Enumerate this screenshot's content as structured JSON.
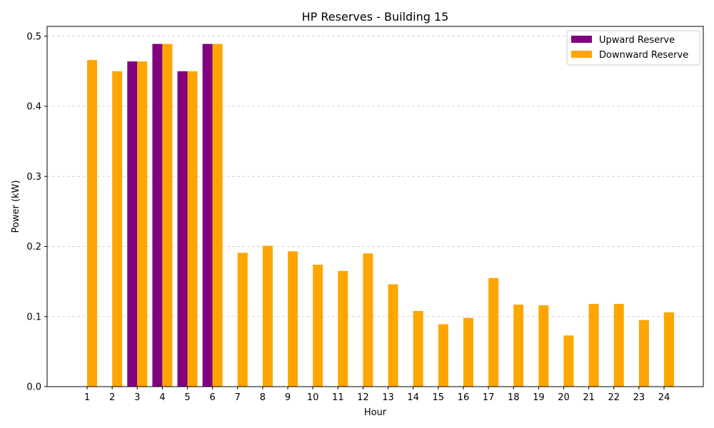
{
  "chart_data": {
    "type": "bar",
    "title": "HP Reserves - Building 15",
    "xlabel": "Hour",
    "ylabel": "Power (kW)",
    "categories": [
      "1",
      "2",
      "3",
      "4",
      "5",
      "6",
      "7",
      "8",
      "9",
      "10",
      "11",
      "12",
      "13",
      "14",
      "15",
      "16",
      "17",
      "18",
      "19",
      "20",
      "21",
      "22",
      "23",
      "24"
    ],
    "series": [
      {
        "name": "Upward Reserve",
        "color": "#800080",
        "values": [
          0,
          0,
          0.464,
          0.489,
          0.45,
          0.489,
          0,
          0,
          0,
          0,
          0,
          0,
          0,
          0,
          0,
          0,
          0,
          0,
          0,
          0,
          0,
          0,
          0,
          0
        ]
      },
      {
        "name": "Downward Reserve",
        "color": "#FFA500",
        "values": [
          0.466,
          0.45,
          0.464,
          0.489,
          0.45,
          0.489,
          0.191,
          0.201,
          0.193,
          0.174,
          0.165,
          0.19,
          0.146,
          0.108,
          0.089,
          0.098,
          0.155,
          0.117,
          0.116,
          0.073,
          0.118,
          0.118,
          0.095,
          0.106
        ]
      }
    ],
    "ylim": [
      0,
      0.514
    ],
    "yticks": [
      "0.0",
      "0.1",
      "0.2",
      "0.3",
      "0.4",
      "0.5"
    ],
    "ytick_values": [
      0,
      0.1,
      0.2,
      0.3,
      0.4,
      0.5
    ],
    "grid": "y-dashed",
    "legend_position": "top-right"
  }
}
